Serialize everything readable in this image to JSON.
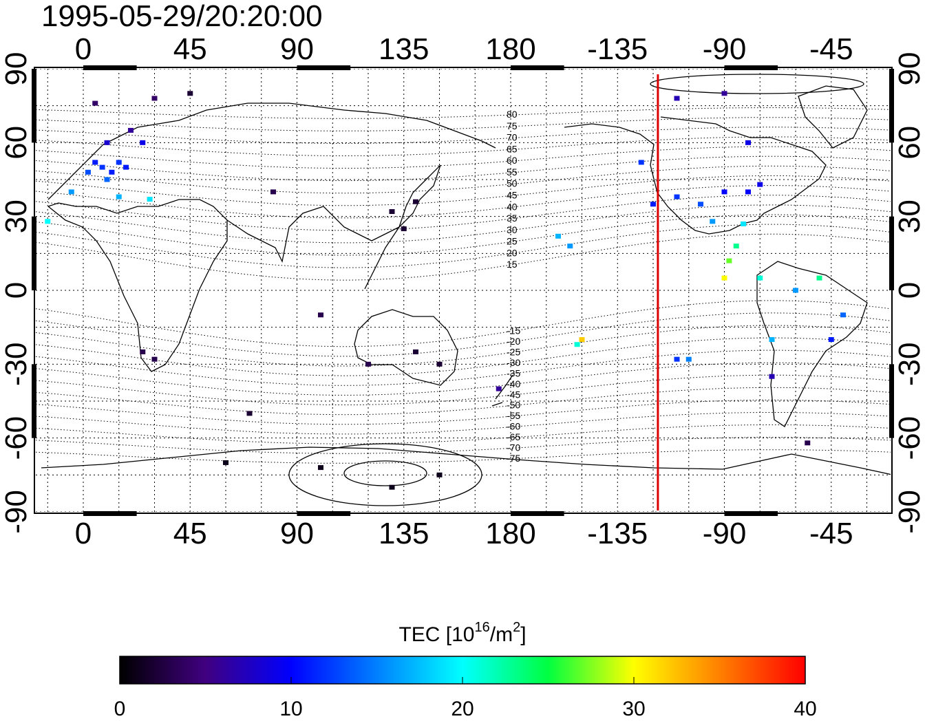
{
  "title": "1995-05-29/20:20:00",
  "colorbar": {
    "label": "TEC  [10",
    "label_sup": "16",
    "label_mid": "/m",
    "label_sup2": "2",
    "label_end": "]",
    "min": 0,
    "max": 40,
    "ticks": [
      "0",
      "10",
      "20",
      "30",
      "40"
    ],
    "colormap": [
      "#000000",
      "#400080",
      "#0000ff",
      "#00ffff",
      "#00ff00",
      "#ffff00",
      "#ff0000"
    ]
  },
  "chart_data": {
    "type": "heatmap",
    "projection": "equirectangular",
    "x_center_longitude": 180,
    "xlim": [
      -20,
      340
    ],
    "ylim": [
      -90,
      90
    ],
    "x_ticks": [
      "0",
      "45",
      "90",
      "135",
      "180",
      "-135",
      "-90",
      "-45"
    ],
    "y_ticks_left": [
      "90",
      "60",
      "30",
      "0",
      "-30",
      "-60",
      "-90"
    ],
    "y_ticks_right": [
      "90",
      "60",
      "30",
      "0",
      "-30",
      "-60",
      "-90"
    ],
    "grid": true,
    "terminator_longitude": -118,
    "terminator_color": "#dd0000",
    "magnetic_latitude_labels": {
      "north": [
        "80",
        "75",
        "70",
        "65",
        "60",
        "55",
        "50",
        "45",
        "40",
        "35",
        "30",
        "25",
        "20",
        "15"
      ],
      "south": [
        "-15",
        "-20",
        "-25",
        "-30",
        "-35",
        "-40",
        "-45",
        "-50",
        "-55",
        "-60",
        "-65",
        "-70",
        "-75"
      ]
    },
    "points": [
      {
        "lon": 5,
        "lat": 52,
        "tec": 11
      },
      {
        "lon": 8,
        "lat": 50,
        "tec": 12
      },
      {
        "lon": 12,
        "lat": 48,
        "tec": 11
      },
      {
        "lon": 15,
        "lat": 52,
        "tec": 12
      },
      {
        "lon": 18,
        "lat": 50,
        "tec": 11
      },
      {
        "lon": 10,
        "lat": 45,
        "tec": 14
      },
      {
        "lon": 2,
        "lat": 48,
        "tec": 13
      },
      {
        "lon": -5,
        "lat": 40,
        "tec": 16
      },
      {
        "lon": -15,
        "lat": 28,
        "tec": 20
      },
      {
        "lon": 10,
        "lat": 60,
        "tec": 8
      },
      {
        "lon": 20,
        "lat": 65,
        "tec": 6
      },
      {
        "lon": 25,
        "lat": 60,
        "tec": 9
      },
      {
        "lon": 15,
        "lat": 38,
        "tec": 17
      },
      {
        "lon": 28,
        "lat": 37,
        "tec": 19
      },
      {
        "lon": 30,
        "lat": 78,
        "tec": 4
      },
      {
        "lon": 45,
        "lat": 80,
        "tec": 2
      },
      {
        "lon": 5,
        "lat": 76,
        "tec": 4
      },
      {
        "lon": 30,
        "lat": -28,
        "tec": 3
      },
      {
        "lon": 25,
        "lat": -25,
        "tec": 3
      },
      {
        "lon": 140,
        "lat": 36,
        "tec": 2
      },
      {
        "lon": 130,
        "lat": 32,
        "tec": 2
      },
      {
        "lon": 135,
        "lat": 25,
        "tec": 2
      },
      {
        "lon": 150,
        "lat": -30,
        "tec": 2
      },
      {
        "lon": 140,
        "lat": -25,
        "tec": 2
      },
      {
        "lon": 120,
        "lat": -30,
        "tec": 3
      },
      {
        "lon": 175,
        "lat": -40,
        "tec": 6
      },
      {
        "lon": 100,
        "lat": -10,
        "tec": 3
      },
      {
        "lon": 80,
        "lat": 40,
        "tec": 3
      },
      {
        "lon": 70,
        "lat": -50,
        "tec": 2
      },
      {
        "lon": 60,
        "lat": -70,
        "tec": 1
      },
      {
        "lon": 130,
        "lat": -80,
        "tec": 1
      },
      {
        "lon": 100,
        "lat": -72,
        "tec": 1
      },
      {
        "lon": 150,
        "lat": -75,
        "tec": 1
      },
      {
        "lon": -160,
        "lat": 22,
        "tec": 17
      },
      {
        "lon": -155,
        "lat": 18,
        "tec": 16
      },
      {
        "lon": -150,
        "lat": -20,
        "tec": 32
      },
      {
        "lon": -152,
        "lat": -22,
        "tec": 21
      },
      {
        "lon": -110,
        "lat": -28,
        "tec": 12
      },
      {
        "lon": -105,
        "lat": -28,
        "tec": 15
      },
      {
        "lon": -120,
        "lat": 35,
        "tec": 11
      },
      {
        "lon": -110,
        "lat": 38,
        "tec": 12
      },
      {
        "lon": -100,
        "lat": 35,
        "tec": 13
      },
      {
        "lon": -90,
        "lat": 40,
        "tec": 10
      },
      {
        "lon": -80,
        "lat": 40,
        "tec": 10
      },
      {
        "lon": -75,
        "lat": 43,
        "tec": 9
      },
      {
        "lon": -95,
        "lat": 28,
        "tec": 16
      },
      {
        "lon": -82,
        "lat": 27,
        "tec": 19
      },
      {
        "lon": -85,
        "lat": 18,
        "tec": 23
      },
      {
        "lon": -88,
        "lat": 12,
        "tec": 27
      },
      {
        "lon": -90,
        "lat": 5,
        "tec": 30
      },
      {
        "lon": -75,
        "lat": 5,
        "tec": 21
      },
      {
        "lon": -60,
        "lat": 0,
        "tec": 16
      },
      {
        "lon": -50,
        "lat": 5,
        "tec": 23
      },
      {
        "lon": -40,
        "lat": -10,
        "tec": 14
      },
      {
        "lon": -70,
        "lat": -20,
        "tec": 17
      },
      {
        "lon": -45,
        "lat": -20,
        "tec": 11
      },
      {
        "lon": -70,
        "lat": -35,
        "tec": 7
      },
      {
        "lon": -55,
        "lat": -62,
        "tec": 3
      },
      {
        "lon": -110,
        "lat": 78,
        "tec": 7
      },
      {
        "lon": -90,
        "lat": 80,
        "tec": 6
      },
      {
        "lon": -125,
        "lat": 52,
        "tec": 12
      },
      {
        "lon": -80,
        "lat": 60,
        "tec": 9
      }
    ]
  }
}
